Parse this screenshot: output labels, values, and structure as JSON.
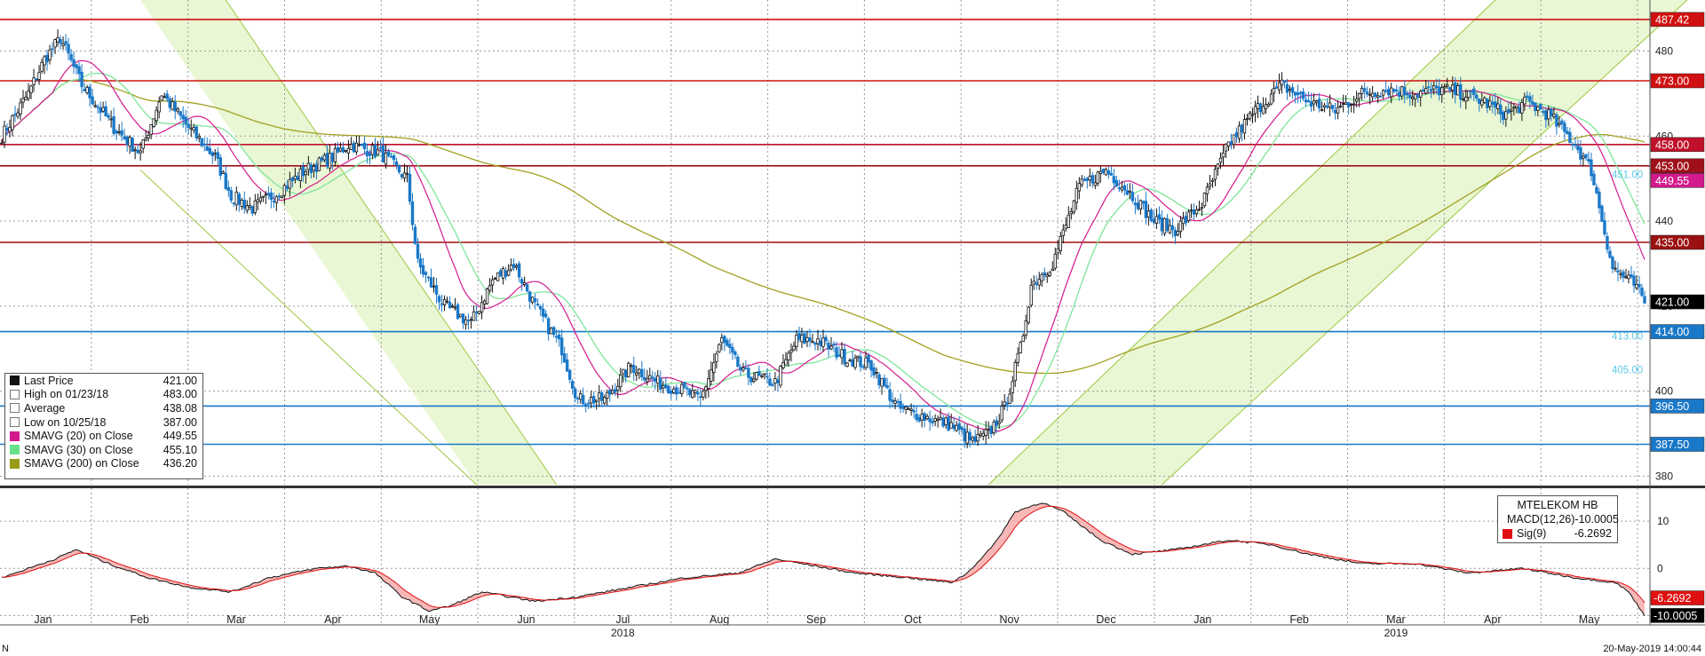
{
  "chart_data": {
    "type": "candlestick",
    "symbol": "MTELEKOM HB",
    "price_axis": {
      "range": [
        378,
        492
      ],
      "ticks": [
        380,
        400,
        420,
        440,
        460,
        480
      ],
      "levels": [
        {
          "label": "487.42",
          "value": 487.42,
          "color": "#d01010"
        },
        {
          "label": "473.00",
          "value": 473.0,
          "color": "#d01010"
        },
        {
          "label": "458.00",
          "value": 458.0,
          "color": "#c0102a"
        },
        {
          "label": "453.00",
          "value": 453.0,
          "color": "#a0101a"
        },
        {
          "label": "435.00",
          "value": 435.0,
          "color": "#9b1010"
        },
        {
          "label": "414.00",
          "value": 414.0,
          "color": "#1a78c8"
        },
        {
          "label": "396.50",
          "value": 396.5,
          "color": "#1a78c8"
        },
        {
          "label": "387.50",
          "value": 387.5,
          "color": "#1a78c8"
        }
      ],
      "current_price": {
        "label": "421.00",
        "value": 421.0
      },
      "sma20_tag": {
        "label": "449.55",
        "value": 449.55
      },
      "faint_labels": [
        {
          "label": "451.00",
          "value": 451.0
        },
        {
          "label": "413.00",
          "value": 413.0
        },
        {
          "label": "405.00",
          "value": 405.0
        }
      ]
    },
    "x_axis": {
      "months": [
        "Jan",
        "Feb",
        "Mar",
        "Apr",
        "May",
        "Jun",
        "Jul",
        "Aug",
        "Sep",
        "Oct",
        "Nov",
        "Dec",
        "Jan",
        "Feb",
        "Mar",
        "Apr",
        "May"
      ],
      "years": [
        "2018",
        "2019"
      ]
    },
    "series_legend": [
      {
        "name": "Last Price",
        "value": "421.00",
        "color": "#111111"
      },
      {
        "name": "High on 01/23/18",
        "value": "483.00",
        "color": "#777777"
      },
      {
        "name": "Average",
        "value": "438.08",
        "color": "#777777"
      },
      {
        "name": "Low on 10/25/18",
        "value": "387.00",
        "color": "#777777"
      },
      {
        "name": "SMAVG (20)  on Close",
        "value": "449.55",
        "color": "#d21a8c"
      },
      {
        "name": "SMAVG (30)  on Close",
        "value": "455.10",
        "color": "#66e08a"
      },
      {
        "name": "SMAVG (200)  on Close",
        "value": "436.20",
        "color": "#9a9a1a"
      }
    ],
    "price_anchors": [
      [
        0,
        460
      ],
      [
        10,
        470
      ],
      [
        16,
        478
      ],
      [
        22,
        483
      ],
      [
        30,
        472
      ],
      [
        42,
        462
      ],
      [
        52,
        456
      ],
      [
        60,
        470
      ],
      [
        70,
        462
      ],
      [
        80,
        455
      ],
      [
        86,
        446
      ],
      [
        94,
        443
      ],
      [
        104,
        447
      ],
      [
        114,
        452
      ],
      [
        124,
        455
      ],
      [
        130,
        458
      ],
      [
        142,
        456
      ],
      [
        152,
        450
      ],
      [
        156,
        430
      ],
      [
        166,
        420
      ],
      [
        176,
        416
      ],
      [
        184,
        426
      ],
      [
        192,
        430
      ],
      [
        200,
        420
      ],
      [
        210,
        410
      ],
      [
        216,
        398
      ],
      [
        226,
        398
      ],
      [
        236,
        406
      ],
      [
        246,
        402
      ],
      [
        256,
        400
      ],
      [
        262,
        398
      ],
      [
        270,
        412
      ],
      [
        278,
        404
      ],
      [
        290,
        402
      ],
      [
        298,
        412
      ],
      [
        306,
        412
      ],
      [
        316,
        408
      ],
      [
        326,
        406
      ],
      [
        336,
        396
      ],
      [
        346,
        394
      ],
      [
        356,
        392
      ],
      [
        364,
        388
      ],
      [
        370,
        390
      ],
      [
        376,
        396
      ],
      [
        382,
        410
      ],
      [
        386,
        425
      ],
      [
        394,
        430
      ],
      [
        404,
        448
      ],
      [
        414,
        452
      ],
      [
        424,
        446
      ],
      [
        432,
        440
      ],
      [
        440,
        438
      ],
      [
        450,
        444
      ],
      [
        460,
        458
      ],
      [
        470,
        466
      ],
      [
        480,
        472
      ],
      [
        490,
        468
      ],
      [
        500,
        466
      ],
      [
        510,
        470
      ],
      [
        520,
        471
      ],
      [
        530,
        470
      ],
      [
        540,
        471
      ],
      [
        548,
        470
      ],
      [
        556,
        468
      ],
      [
        564,
        465
      ],
      [
        572,
        468
      ],
      [
        580,
        465
      ],
      [
        590,
        458
      ],
      [
        596,
        452
      ],
      [
        604,
        429
      ],
      [
        612,
        425
      ],
      [
        616,
        421
      ]
    ],
    "macd": {
      "name": "MACD(12,26)",
      "value": "-10.0005",
      "signal_name": "Sig(9)",
      "signal_value": "-6.2692",
      "range": [
        -12,
        17
      ],
      "ticks": [
        10,
        0,
        -10
      ],
      "tags": [
        {
          "label": "-6.2692",
          "value": -6.2692
        },
        {
          "label": "-10.0005",
          "value": -10.0005
        }
      ],
      "anchors": [
        [
          0,
          -2
        ],
        [
          20,
          2
        ],
        [
          28,
          4
        ],
        [
          40,
          1
        ],
        [
          55,
          -2
        ],
        [
          70,
          -4
        ],
        [
          86,
          -5
        ],
        [
          100,
          -2
        ],
        [
          118,
          0
        ],
        [
          130,
          0.5
        ],
        [
          140,
          -1
        ],
        [
          150,
          -6
        ],
        [
          160,
          -9
        ],
        [
          168,
          -8
        ],
        [
          180,
          -5
        ],
        [
          200,
          -7
        ],
        [
          216,
          -6
        ],
        [
          236,
          -4
        ],
        [
          256,
          -2
        ],
        [
          276,
          -1
        ],
        [
          290,
          2
        ],
        [
          300,
          1
        ],
        [
          320,
          -1
        ],
        [
          340,
          -2
        ],
        [
          356,
          -3
        ],
        [
          362,
          -1
        ],
        [
          372,
          5
        ],
        [
          380,
          12
        ],
        [
          390,
          14
        ],
        [
          398,
          12
        ],
        [
          412,
          6
        ],
        [
          424,
          3
        ],
        [
          440,
          4
        ],
        [
          460,
          6
        ],
        [
          476,
          5
        ],
        [
          490,
          3
        ],
        [
          510,
          1
        ],
        [
          530,
          1
        ],
        [
          550,
          -1
        ],
        [
          570,
          0
        ],
        [
          590,
          -2
        ],
        [
          605,
          -3
        ],
        [
          610,
          -5
        ],
        [
          616,
          -10
        ]
      ]
    }
  },
  "footer": {
    "left": "N",
    "right": "20-May-2019 14:00:44"
  }
}
